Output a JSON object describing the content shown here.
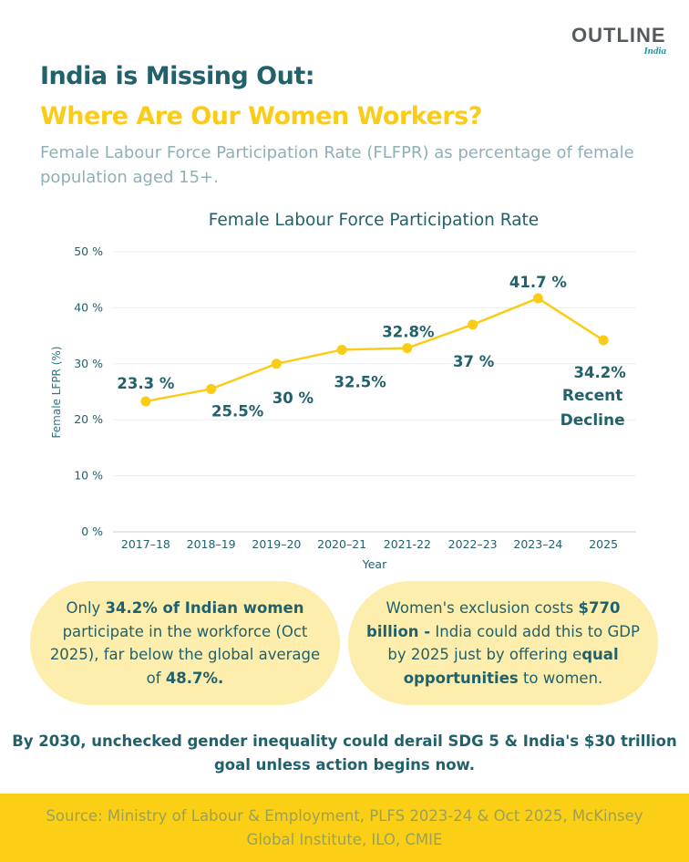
{
  "brand": {
    "logo_text": "OUTLINE",
    "logo_sub": "India",
    "accent_color": "#fbcc17",
    "primary_color": "#21616b"
  },
  "header": {
    "title_line1": "India is Missing Out:",
    "title_line2": "Where Are Our Women Workers?",
    "subtitle": "Female Labour Force Participation Rate (FLFPR) as percentage of female population aged 15+."
  },
  "chart_data": {
    "type": "line",
    "title": "Female Labour Force Participation Rate",
    "xlabel": "Year",
    "ylabel": "Female LFPR (%)",
    "categories": [
      "2017–18",
      "2018–19",
      "2019–20",
      "2020–21",
      "2021-22",
      "2022–23",
      "2023–24",
      "2025"
    ],
    "values": [
      23.3,
      25.5,
      30,
      32.5,
      32.8,
      37,
      41.7,
      34.2
    ],
    "data_labels": [
      "23.3 %",
      "25.5%",
      "30 %",
      "32.5%",
      "32.8%",
      "37 %",
      "41.7 %",
      "34.2%"
    ],
    "label_positions": [
      "above",
      "below",
      "below",
      "below",
      "above",
      "below",
      "above",
      "below"
    ],
    "ylim": [
      0,
      50
    ],
    "yticks": [
      0,
      10,
      20,
      30,
      40,
      50
    ],
    "ytick_labels": [
      "0 %",
      "10 %",
      "20 %",
      "30 %",
      "40 %",
      "50 %"
    ],
    "grid": true,
    "line_color": "#fbcc17",
    "annotation": {
      "category": "2025",
      "lines": [
        "Recent",
        "Decline"
      ]
    }
  },
  "cards": {
    "left": {
      "pre": "Only ",
      "bold1": "34.2% of Indian women",
      "mid": " participate in the workforce (Oct 2025), far below the global average of ",
      "bold2": "48.7%."
    },
    "right": {
      "pre": "Women's exclusion costs ",
      "bold1": "$770 billion -",
      "mid": " India could add this to GDP by 2025 just by offering e",
      "bold2": "qual opportunities",
      "post": " to women."
    }
  },
  "bottom_note": "By 2030, unchecked gender inequality could derail SDG 5 & India's $30 trillion goal unless action begins now.",
  "footer": {
    "source": "Source: Ministry of Labour & Employment, PLFS 2023-24 & Oct 2025, McKinsey Global Institute, ILO, CMIE"
  }
}
